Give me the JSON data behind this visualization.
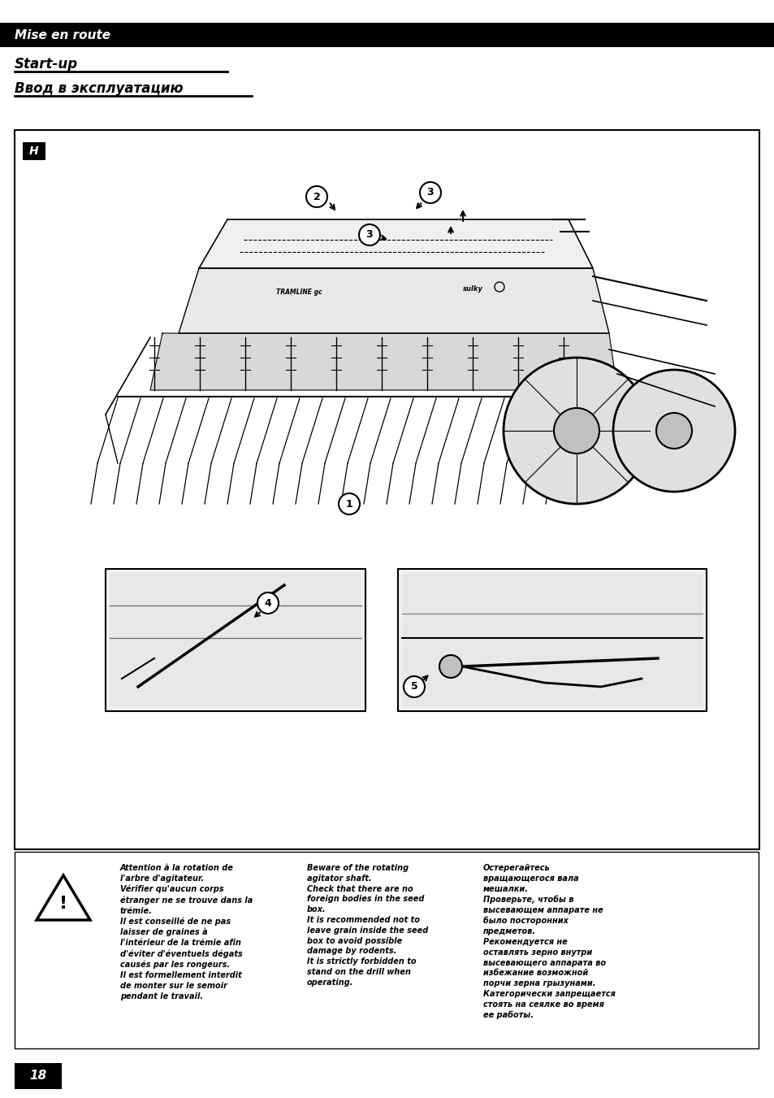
{
  "page_bg": "#ffffff",
  "header_bg": "#000000",
  "header_text": "Mise en route",
  "header_text_color": "#ffffff",
  "header_font_size": 11,
  "subtitle1": "Start-up",
  "subtitle2": "Ввод в эксплуатацию",
  "subtitle_font_size": 12,
  "page_number": "18",
  "h_label_text": "H",
  "french_text": "Attention à la rotation de\nl'arbre d'agitateur.\nVérifier qu'aucun corps\nétranger ne se trouve dans la\ntrémie.\nIl est conseillé de ne pas\nlaisser de graines à\nl'intérieur de la trémie afin\nd'éviter d'éventuels dégats\ncausés par les rongeurs.\nIl est formellement interdit\nde monter sur le semoir\npendant le travail.",
  "english_text": "Beware of the rotating\nagitator shaft.\nCheck that there are no\nforeign bodies in the seed\nbox.\nIt is recommended not to\nleave grain inside the seed\nbox to avoid possible\ndamage by rodents.\nIt is strictly forbidden to\nstand on the drill when\noperating.",
  "russian_text": "Остерегайтесь\nвращающегося вала\nмешалки.\nПроверьте, чтобы в\nвысевающем аппарате не\nбыло посторонних\nпредметов.\nРекомендуется не\nоставлять зерно внутри\nвысевающего аппарата во\nизбежание возможной\nпорчи зерна грызунами.\nКатегорически запрещается\nстоять на сеялке во время\nее работы.",
  "text_font_size": 7.0,
  "label_font_size": 9
}
